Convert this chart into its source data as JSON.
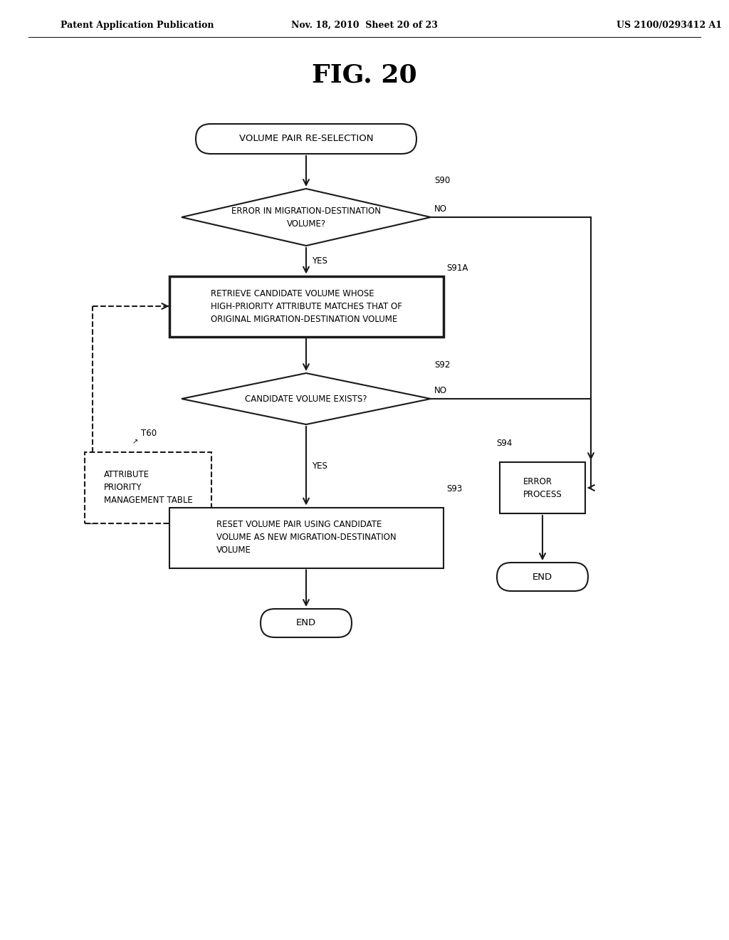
{
  "fig_title": "FIG. 20",
  "header_left": "Patent Application Publication",
  "header_mid": "Nov. 18, 2010  Sheet 20 of 23",
  "header_right": "US 2100/0293412 A1",
  "bg_color": "#ffffff",
  "line_color": "#1a1a1a",
  "start_label": "VOLUME PAIR RE-SELECTION",
  "s90_label": "ERROR IN MIGRATION-DESTINATION\nVOLUME?",
  "s90_tag": "S90",
  "s91a_label": "RETRIEVE CANDIDATE VOLUME WHOSE\nHIGH-PRIORITY ATTRIBUTE MATCHES THAT OF\nORIGINAL MIGRATION-DESTINATION VOLUME",
  "s91a_tag": "S91A",
  "s92_label": "CANDIDATE VOLUME EXISTS?",
  "s92_tag": "S92",
  "s93_label": "RESET VOLUME PAIR USING CANDIDATE\nVOLUME AS NEW MIGRATION-DESTINATION\nVOLUME",
  "s93_tag": "S93",
  "s94_label": "ERROR\nPROCESS",
  "s94_tag": "S94",
  "t60_label": "ATTRIBUTE\nPRIORITY\nMANAGEMENT TABLE",
  "t60_tag": "T60",
  "end_label": "END",
  "yes_label": "YES",
  "no_label": "NO"
}
